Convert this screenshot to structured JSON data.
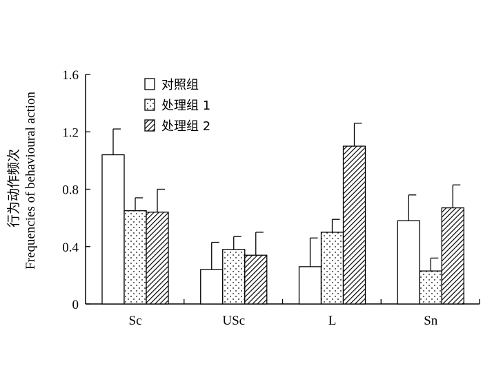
{
  "chart_data": {
    "type": "bar",
    "ylabel_cn": "行为动作频次",
    "ylabel_en": "Frequencies of behavioural action",
    "categories": [
      "Sc",
      "USc",
      "L",
      "Sn"
    ],
    "ylim": [
      0,
      1.6
    ],
    "yticks": [
      "0",
      "0.4",
      "0.8",
      "1.2",
      "1.6"
    ],
    "ytick_values": [
      0,
      0.4,
      0.8,
      1.2,
      1.6
    ],
    "grid": false,
    "legend_position": "top-left",
    "series": [
      {
        "name": "对照组",
        "fill": "white",
        "values": [
          1.04,
          0.24,
          0.26,
          0.58
        ],
        "errors": [
          0.18,
          0.19,
          0.2,
          0.18
        ]
      },
      {
        "name": "处理组 1",
        "fill": "dots",
        "values": [
          0.65,
          0.38,
          0.5,
          0.23
        ],
        "errors": [
          0.09,
          0.09,
          0.09,
          0.09
        ]
      },
      {
        "name": "处理组 2",
        "fill": "hatch",
        "values": [
          0.64,
          0.34,
          1.1,
          0.67
        ],
        "errors": [
          0.16,
          0.16,
          0.16,
          0.16
        ]
      }
    ]
  }
}
